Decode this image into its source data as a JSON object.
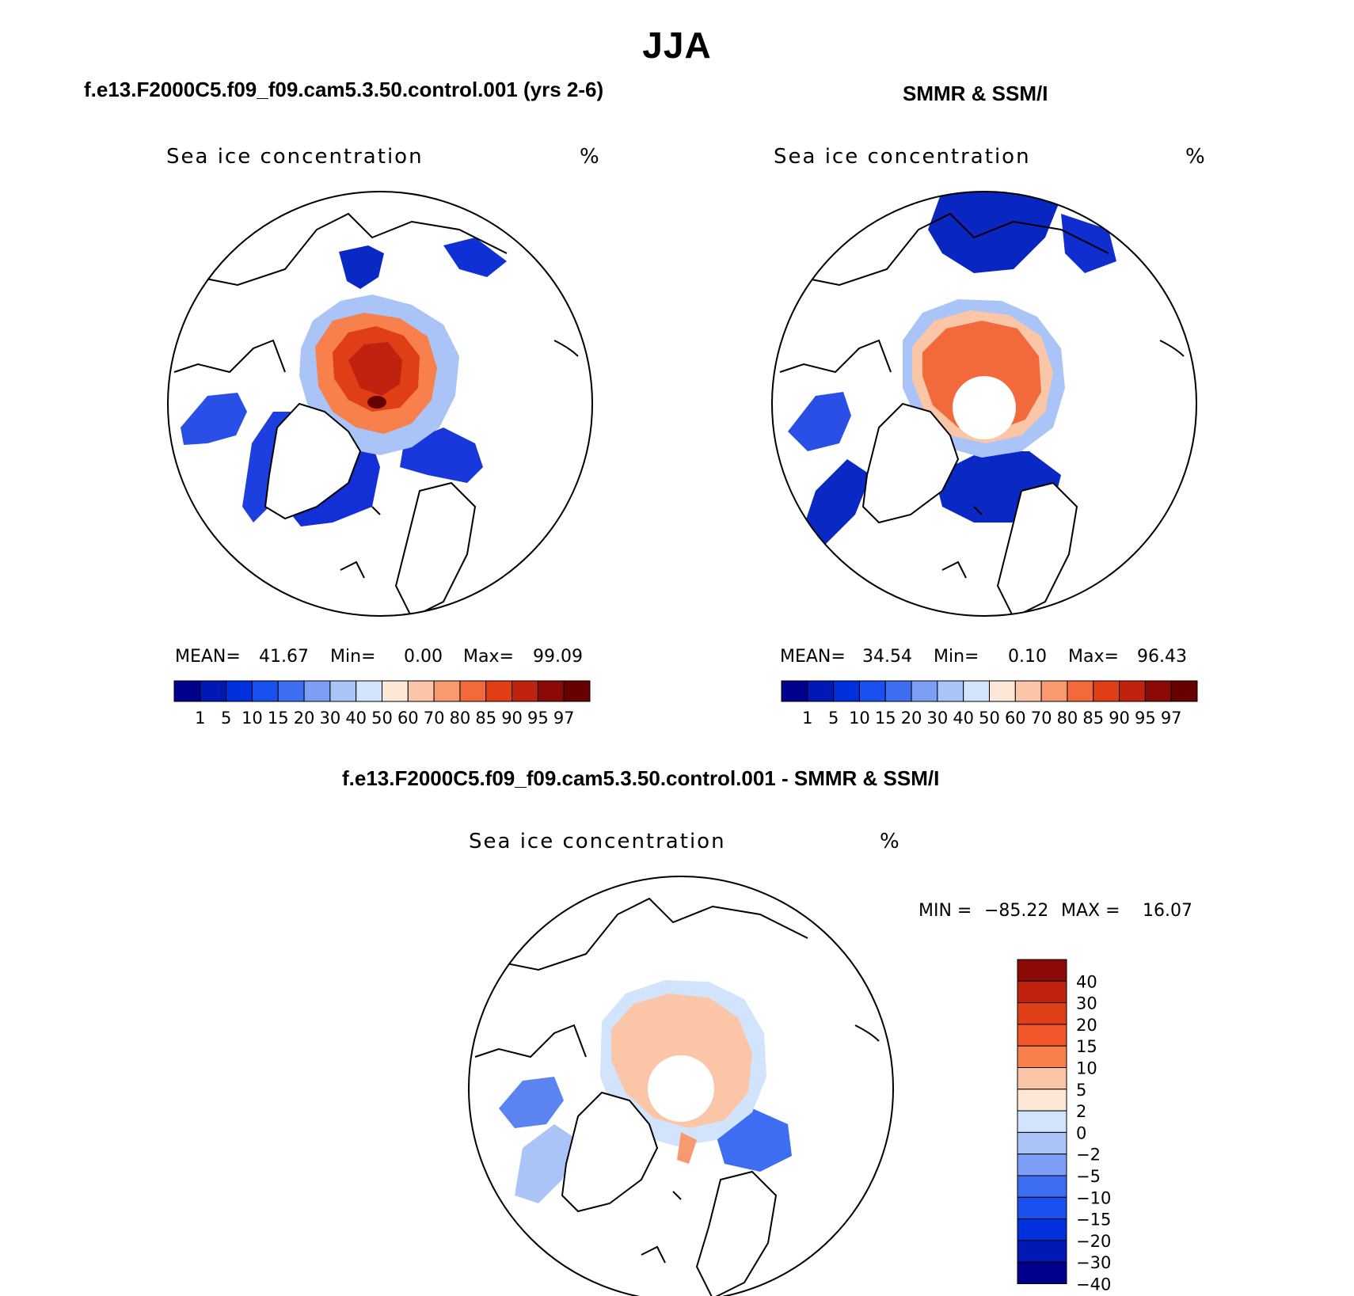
{
  "title": "JJA",
  "panels": [
    {
      "title": "f.e13.F2000C5.f09_f09.cam5.3.50.control.001 (yrs 2-6)",
      "variable": "Sea ice concentration",
      "units": "%",
      "stats": {
        "mean_label": "MEAN=",
        "mean": "41.67",
        "min_label": "Min=",
        "min": "0.00",
        "max_label": "Max=",
        "max": "99.09"
      }
    },
    {
      "title": "SMMR & SSM/I",
      "variable": "Sea ice concentration",
      "units": "%",
      "stats": {
        "mean_label": "MEAN=",
        "mean": "34.54",
        "min_label": "Min=",
        "min": "0.10",
        "max_label": "Max=",
        "max": "96.43"
      }
    },
    {
      "title": "f.e13.F2000C5.f09_f09.cam5.3.50.control.001 - SMMR & SSM/I",
      "variable": "Sea ice concentration",
      "units": "%",
      "stats": {
        "min_label": "MIN =",
        "min": "−85.22",
        "max_label": "MAX =",
        "max": "16.07"
      }
    }
  ],
  "chart_data": [
    {
      "type": "polar-contour-map",
      "title": "f.e13.F2000C5.f09_f09.cam5.3.50.control.001 (yrs 2-6)",
      "variable": "Sea ice concentration",
      "units": "%",
      "mean": 41.67,
      "min": 0.0,
      "max": 99.09,
      "colorbar": {
        "levels": [
          "1",
          "5",
          "10",
          "15",
          "20",
          "30",
          "40",
          "50",
          "60",
          "70",
          "80",
          "85",
          "90",
          "95",
          "97"
        ],
        "colors": [
          "#00008c",
          "#0018b4",
          "#0030dc",
          "#1a4ff0",
          "#3d6ef2",
          "#7c9ef4",
          "#aac4f7",
          "#d2e4fb",
          "#fde8d8",
          "#fbc6a8",
          "#f89a6e",
          "#f26a3c",
          "#e03e17",
          "#bf2310",
          "#8c0a06",
          "#670000"
        ]
      }
    },
    {
      "type": "polar-contour-map",
      "title": "SMMR & SSM/I",
      "variable": "Sea ice concentration",
      "units": "%",
      "mean": 34.54,
      "min": 0.1,
      "max": 96.43,
      "colorbar": {
        "levels": [
          "1",
          "5",
          "10",
          "15",
          "20",
          "30",
          "40",
          "50",
          "60",
          "70",
          "80",
          "85",
          "90",
          "95",
          "97"
        ],
        "colors": [
          "#00008c",
          "#0018b4",
          "#0030dc",
          "#1a4ff0",
          "#3d6ef2",
          "#7c9ef4",
          "#aac4f7",
          "#d2e4fb",
          "#fde8d8",
          "#fbc6a8",
          "#f89a6e",
          "#f26a3c",
          "#e03e17",
          "#bf2310",
          "#8c0a06",
          "#670000"
        ]
      }
    },
    {
      "type": "polar-contour-map",
      "title": "f.e13.F2000C5.f09_f09.cam5.3.50.control.001 - SMMR & SSM/I",
      "variable": "Sea ice concentration",
      "units": "%",
      "min": -85.22,
      "max": 16.07,
      "colorbar": {
        "levels": [
          "40",
          "30",
          "20",
          "15",
          "10",
          "5",
          "2",
          "0",
          "−2",
          "−5",
          "−10",
          "−15",
          "−20",
          "−30",
          "−40"
        ],
        "colors": [
          "#8c0a06",
          "#bf2310",
          "#e03e17",
          "#f2562a",
          "#f8804c",
          "#fbc6a8",
          "#fde8d8",
          "#d2e4fb",
          "#aac4f7",
          "#7c9ef4",
          "#3d6ef2",
          "#1a4ff0",
          "#0030dc",
          "#0018b4",
          "#00008c"
        ]
      }
    }
  ]
}
